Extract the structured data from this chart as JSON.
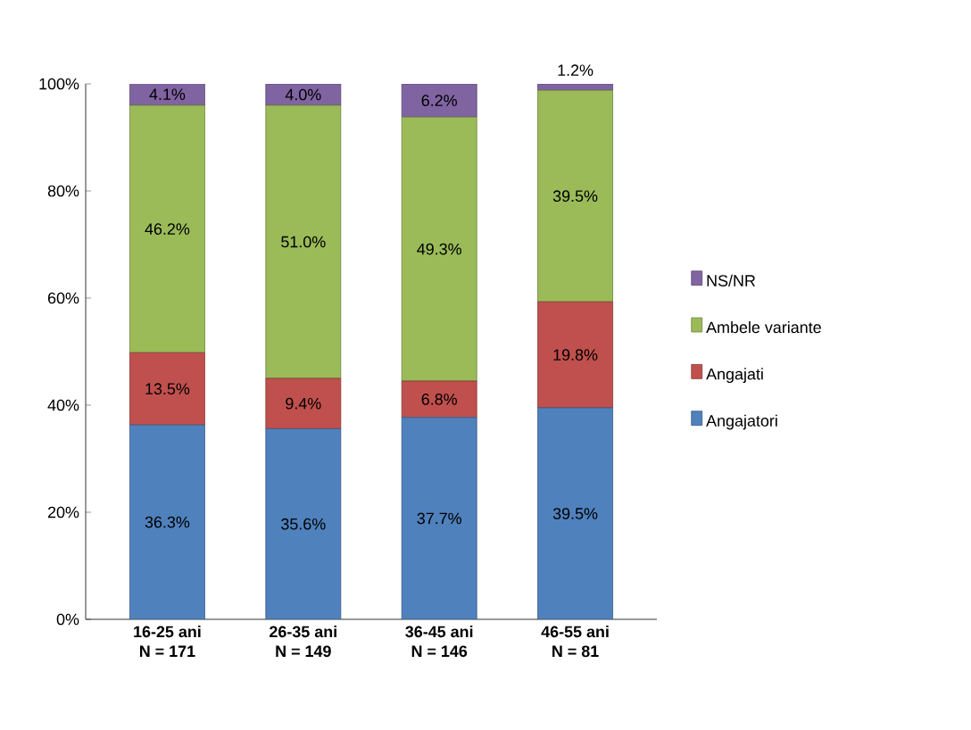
{
  "chart_data": {
    "type": "bar",
    "stacked": true,
    "categories": [
      "16-25 ani\nN = 171",
      "26-35 ani\nN = 149",
      "36-45 ani\nN = 146",
      "46-55 ani\nN = 81"
    ],
    "series": [
      {
        "name": "Angajatori",
        "color": "#4f81bd",
        "values": [
          36.3,
          35.6,
          37.7,
          39.5
        ],
        "value_labels": [
          "36.3%",
          "35.6%",
          "37.7%",
          "39.5%"
        ]
      },
      {
        "name": "Angajati",
        "color": "#c0504d",
        "values": [
          13.5,
          9.4,
          6.8,
          19.8
        ],
        "value_labels": [
          "13.5%",
          "9.4%",
          "6.8%",
          "19.8%"
        ]
      },
      {
        "name": "Ambele variante",
        "color": "#9bbb59",
        "values": [
          46.2,
          51.0,
          49.3,
          39.5
        ],
        "value_labels": [
          "46.2%",
          "51.0%",
          "49.3%",
          "39.5%"
        ]
      },
      {
        "name": "NS/NR",
        "color": "#8064a2",
        "values": [
          4.1,
          4.0,
          6.2,
          1.2
        ],
        "value_labels": [
          "4.1%",
          "4.0%",
          "6.2%",
          "1.2%"
        ]
      }
    ],
    "ylim": [
      0,
      100
    ],
    "yticks": [
      {
        "value": 0,
        "label": "0%"
      },
      {
        "value": 20,
        "label": "20%"
      },
      {
        "value": 40,
        "label": "40%"
      },
      {
        "value": 60,
        "label": "60%"
      },
      {
        "value": 80,
        "label": "80%"
      },
      {
        "value": 100,
        "label": "100%"
      }
    ],
    "legend": "right"
  }
}
